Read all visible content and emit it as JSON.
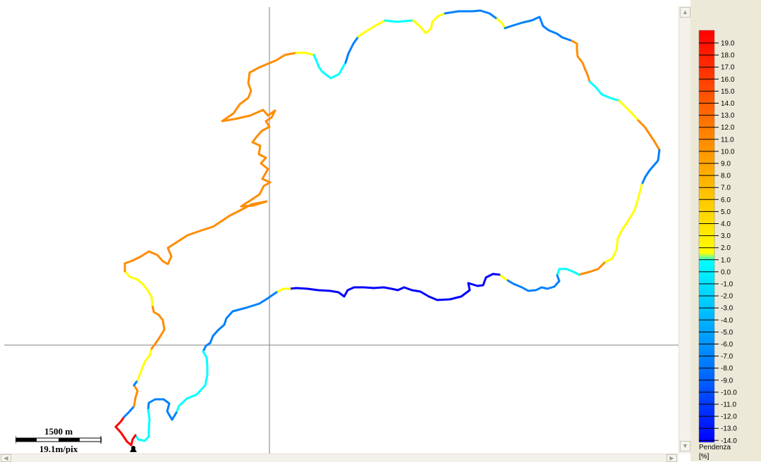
{
  "map": {
    "scale_distance": "1500 m",
    "scale_resolution": "19.1m/pix"
  },
  "legend": {
    "title": "Pendenza",
    "unit": "[%]",
    "ticks": [
      "19.0",
      "18.0",
      "17.0",
      "16.0",
      "15.0",
      "14.0",
      "13.0",
      "12.0",
      "11.0",
      "10.0",
      "9.0",
      "8.0",
      "7.0",
      "6.0",
      "5.0",
      "4.0",
      "3.0",
      "2.0",
      "1.0",
      "0.0",
      "-1.0",
      "-2.0",
      "-3.0",
      "-4.0",
      "-5.0",
      "-6.0",
      "-7.0",
      "-8.0",
      "-9.0",
      "-10.0",
      "-11.0",
      "-12.0",
      "-13.0",
      "-14.0"
    ],
    "colors": {
      "max": "#ff0000",
      "high": "#ff8c00",
      "mid": "#ffff00",
      "zero": "#00ffff",
      "low": "#0080ff",
      "min": "#0000ff"
    }
  },
  "scrollbars": {
    "up_icon": "▲",
    "down_icon": "▼",
    "left_icon": "◀",
    "right_icon": "▶"
  }
}
